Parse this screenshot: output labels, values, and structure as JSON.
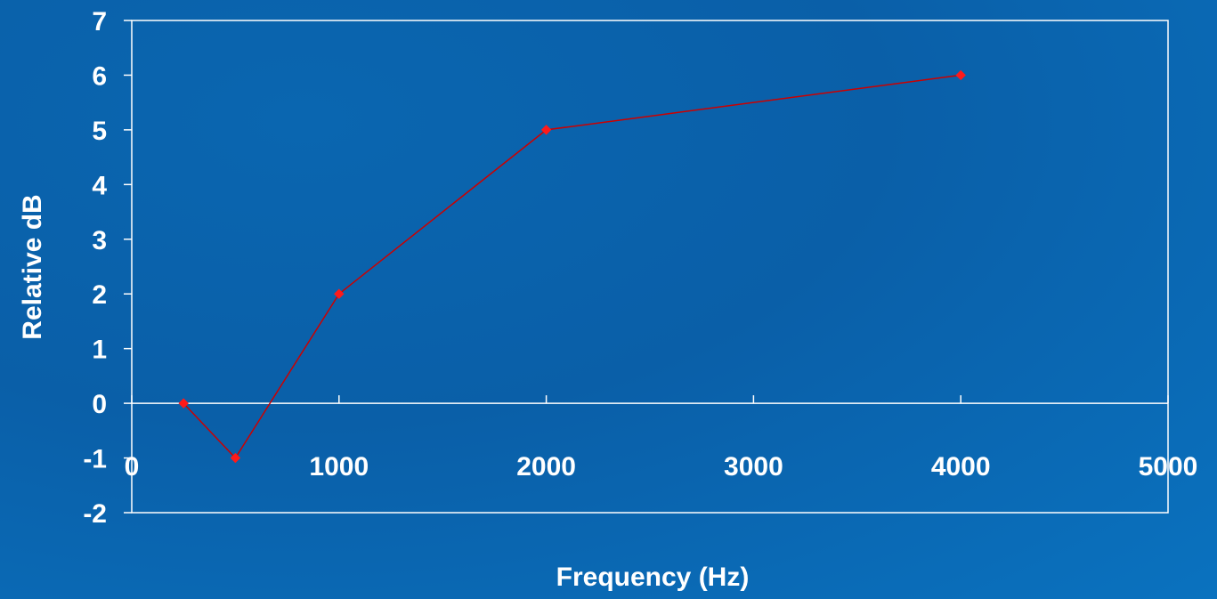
{
  "chart_data": {
    "type": "line",
    "title": "",
    "xlabel": "Frequency (Hz)",
    "ylabel": "Relative dB",
    "xlim": [
      0,
      5000
    ],
    "ylim": [
      -2,
      7
    ],
    "x_ticks": [
      "0",
      "1000",
      "2000",
      "3000",
      "4000",
      "5000"
    ],
    "y_ticks": [
      "-2",
      "-1",
      "0",
      "1",
      "2",
      "3",
      "4",
      "5",
      "6",
      "7"
    ],
    "grid": false,
    "legend": "none",
    "series": [
      {
        "x": [
          250,
          500,
          1000,
          2000,
          4000
        ],
        "y": [
          0,
          -1,
          2,
          5,
          6
        ],
        "color": "#cc0000"
      }
    ],
    "colors": {
      "background": "#0a63ad",
      "axis": "#ffffff",
      "line": "#cc0000",
      "marker": "#ff1a1a"
    }
  }
}
